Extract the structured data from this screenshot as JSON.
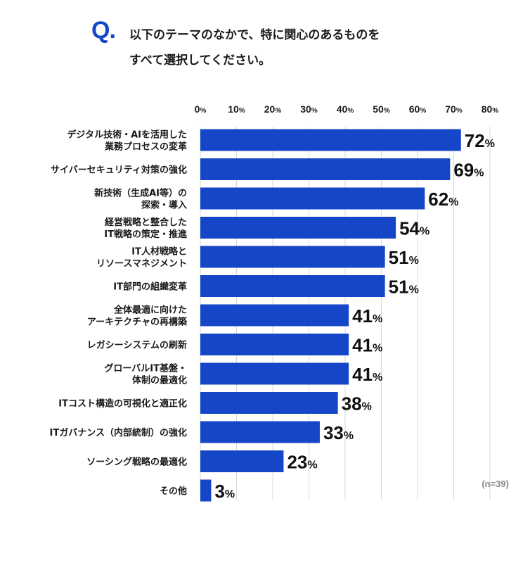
{
  "question": {
    "mark": "Q.",
    "lines": [
      "以下のテーマのなかで、特に関心のあるものを",
      "すべて選択してください。"
    ]
  },
  "sample_note": "(n=39)",
  "colors": {
    "bar": "#1546c7",
    "grid": "#d7d7d7",
    "q_mark": "#1546c7"
  },
  "chart_data": {
    "type": "bar",
    "orientation": "horizontal",
    "unit_suffix": "%",
    "xlim": [
      0,
      80
    ],
    "ticks": [
      "0%",
      "10%",
      "20%",
      "30%",
      "40%",
      "50%",
      "60%",
      "70%",
      "80%"
    ],
    "tick_values": [
      0,
      10,
      20,
      30,
      40,
      50,
      60,
      70,
      80
    ],
    "grid": "vertical",
    "categories": [
      [
        "デジタル技術・AIを活用した",
        "業務プロセスの変革"
      ],
      [
        "サイバーセキュリティ対策の強化"
      ],
      [
        "新技術（生成AI等）の",
        "探索・導入"
      ],
      [
        "経営戦略と整合した",
        "IT戦略の策定・推進"
      ],
      [
        "IT人材戦略と",
        "リソースマネジメント"
      ],
      [
        "IT部門の組織変革"
      ],
      [
        "全体最適に向けた",
        "アーキテクチャの再構築"
      ],
      [
        "レガシーシステムの刷新"
      ],
      [
        "グローバルIT基盤・",
        "体制の最適化"
      ],
      [
        "ITコスト構造の可視化と適正化"
      ],
      [
        "ITガバナンス（内部統制）の強化"
      ],
      [
        "ソーシング戦略の最適化"
      ],
      [
        "その他"
      ]
    ],
    "values": [
      72,
      69,
      62,
      54,
      51,
      51,
      41,
      41,
      41,
      38,
      33,
      23,
      3
    ]
  }
}
